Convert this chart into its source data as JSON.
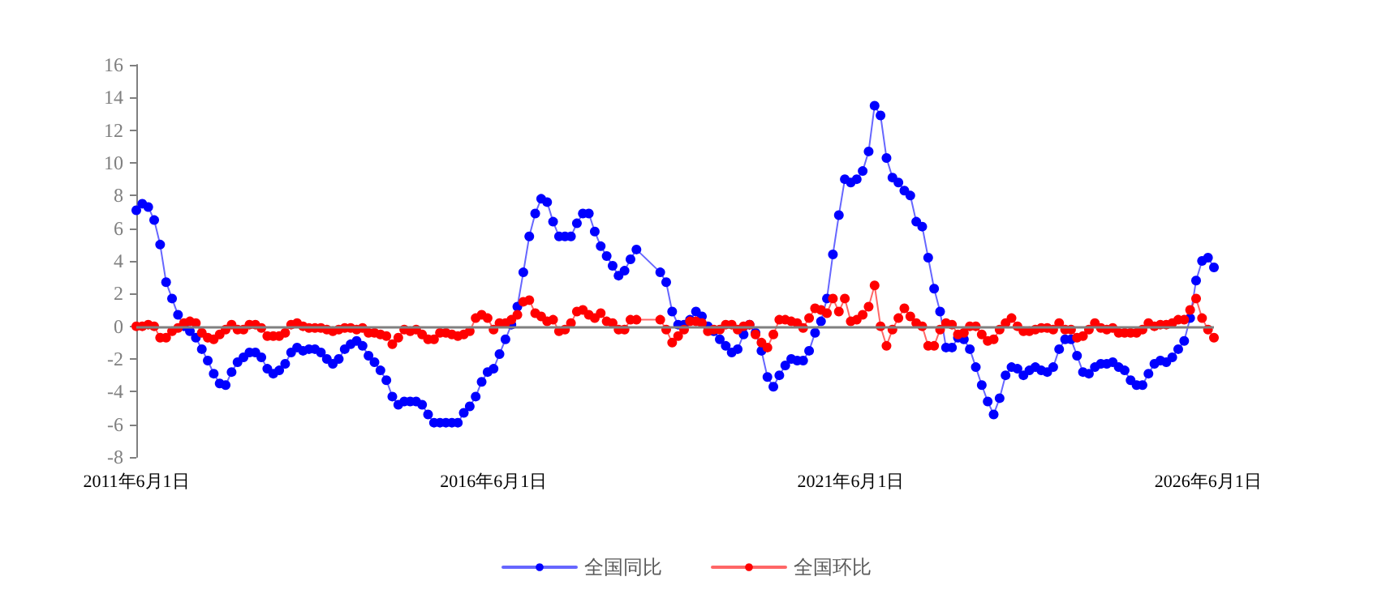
{
  "chart_data": {
    "type": "line",
    "categories": [
      "2011年6月1日",
      null,
      null,
      null,
      null,
      null,
      null,
      null,
      null,
      null,
      null,
      null,
      null,
      null,
      null,
      null,
      null,
      null,
      null,
      null,
      null,
      null,
      null,
      null,
      null,
      null,
      null,
      null,
      null,
      null,
      null,
      null,
      null,
      null,
      null,
      null,
      null,
      null,
      null,
      null,
      null,
      null,
      null,
      null,
      null,
      null,
      null,
      null,
      null,
      null,
      null,
      null,
      null,
      null,
      null,
      null,
      null,
      null,
      null,
      null,
      "2016年6月1日",
      null,
      null,
      null,
      null,
      null,
      null,
      null,
      null,
      null,
      null,
      null,
      null,
      null,
      null,
      null,
      null,
      null,
      null,
      null,
      null,
      null,
      null,
      null,
      null,
      null,
      null,
      null,
      null,
      null,
      null,
      null,
      null,
      null,
      null,
      null,
      null,
      null,
      null,
      null,
      null,
      null,
      null,
      null,
      null,
      null,
      null,
      null,
      null,
      null,
      null,
      null,
      null,
      null,
      null,
      null,
      null,
      null,
      null,
      null,
      "2021年6月1日",
      null,
      null,
      null,
      null,
      null,
      null,
      null,
      null,
      null,
      null,
      null,
      null,
      null,
      null,
      null,
      null,
      null,
      null,
      null,
      null,
      null,
      null,
      null,
      null,
      null,
      null,
      null,
      null,
      null,
      null,
      null,
      null,
      null,
      null,
      null,
      null,
      null,
      null,
      null,
      null,
      null,
      null,
      null,
      null,
      null,
      null,
      null,
      null,
      null,
      null,
      null,
      null,
      null,
      null,
      null,
      null,
      null,
      null,
      null,
      "2026年6月1日",
      null
    ],
    "series": [
      {
        "name": "全国同比",
        "color": "#0000ff",
        "values": [
          7.1,
          7.5,
          7.3,
          6.5,
          5.0,
          2.7,
          1.7,
          0.7,
          0.0,
          -0.3,
          -0.7,
          -1.4,
          -2.1,
          -2.9,
          -3.5,
          -3.6,
          -2.8,
          -2.2,
          -1.9,
          -1.6,
          -1.6,
          -1.9,
          -2.6,
          -2.9,
          -2.7,
          -2.3,
          -1.6,
          -1.3,
          -1.5,
          -1.4,
          -1.4,
          -1.6,
          -2.0,
          -2.3,
          -2.0,
          -1.4,
          -1.1,
          -0.9,
          -1.2,
          -1.8,
          -2.2,
          -2.7,
          -3.3,
          -4.3,
          -4.8,
          -4.6,
          -4.6,
          -4.6,
          -4.8,
          -5.4,
          -5.9,
          -5.9,
          -5.9,
          -5.9,
          -5.9,
          -5.3,
          -4.9,
          -4.3,
          -3.4,
          -2.8,
          -2.6,
          -1.7,
          -0.8,
          0.1,
          1.2,
          3.3,
          5.5,
          6.9,
          7.8,
          7.6,
          6.4,
          5.5,
          5.5,
          5.5,
          6.3,
          6.9,
          6.9,
          5.8,
          4.9,
          4.3,
          3.7,
          3.1,
          3.4,
          4.1,
          4.7,
          null,
          null,
          null,
          3.3,
          2.7,
          0.9,
          0.1,
          0.1,
          0.4,
          0.9,
          0.6,
          0.0,
          -0.3,
          -0.8,
          -1.2,
          -1.6,
          -1.4,
          -0.5,
          0.1,
          -0.4,
          -1.5,
          -3.1,
          -3.7,
          -3.0,
          -2.4,
          -2.0,
          -2.1,
          -2.1,
          -1.5,
          -0.4,
          0.3,
          1.7,
          4.4,
          6.8,
          9.0,
          8.8,
          9.0,
          9.5,
          10.7,
          13.5,
          12.9,
          10.3,
          9.1,
          8.8,
          8.3,
          8.0,
          6.4,
          6.1,
          4.2,
          2.3,
          0.9,
          -1.3,
          -1.3,
          -0.7,
          -0.8,
          -1.4,
          -2.5,
          -3.6,
          -4.6,
          -5.4,
          -4.4,
          -3.0,
          -2.5,
          -2.6,
          -3.0,
          -2.7,
          -2.5,
          -2.7,
          -2.8,
          -2.5,
          -1.4,
          -0.8,
          -0.8,
          -1.8,
          -2.8,
          -2.9,
          -2.5,
          -2.3,
          -2.3,
          -2.2,
          -2.5,
          -2.7,
          -3.3,
          -3.6,
          -3.6,
          -2.9,
          -2.3,
          -2.1,
          -2.2,
          -1.9,
          -1.4,
          -0.9,
          0.5,
          2.8,
          4.0,
          4.2,
          3.6
        ]
      },
      {
        "name": "全国环比",
        "color": "#ff0000",
        "values": [
          0.0,
          0.0,
          0.1,
          0.0,
          -0.7,
          -0.7,
          -0.3,
          -0.1,
          0.2,
          0.3,
          0.2,
          -0.4,
          -0.7,
          -0.8,
          -0.5,
          -0.2,
          0.1,
          -0.2,
          -0.2,
          0.1,
          0.1,
          -0.1,
          -0.6,
          -0.6,
          -0.6,
          -0.4,
          0.1,
          0.2,
          0.0,
          -0.1,
          -0.1,
          -0.1,
          -0.2,
          -0.3,
          -0.2,
          -0.1,
          -0.1,
          -0.2,
          -0.1,
          -0.4,
          -0.4,
          -0.5,
          -0.6,
          -1.1,
          -0.7,
          -0.2,
          -0.3,
          -0.2,
          -0.5,
          -0.8,
          -0.8,
          -0.4,
          -0.4,
          -0.5,
          -0.6,
          -0.5,
          -0.3,
          0.5,
          0.7,
          0.5,
          -0.2,
          0.2,
          0.2,
          0.4,
          0.7,
          1.5,
          1.6,
          0.8,
          0.6,
          0.3,
          0.4,
          -0.3,
          -0.2,
          0.2,
          0.9,
          1.0,
          0.7,
          0.5,
          0.8,
          0.3,
          0.2,
          -0.2,
          -0.2,
          0.4,
          0.4,
          null,
          null,
          null,
          0.4,
          -0.2,
          -1.0,
          -0.6,
          -0.2,
          0.3,
          0.3,
          0.2,
          -0.3,
          -0.2,
          -0.2,
          0.1,
          0.1,
          -0.2,
          0.0,
          0.1,
          -0.5,
          -1.0,
          -1.3,
          -0.5,
          0.4,
          0.4,
          0.3,
          0.2,
          -0.1,
          0.5,
          1.1,
          1.0,
          0.8,
          1.7,
          0.9,
          1.7,
          0.3,
          0.4,
          0.7,
          1.2,
          2.5,
          0.0,
          -1.2,
          -0.2,
          0.5,
          1.1,
          0.6,
          0.2,
          0.0,
          -1.2,
          -1.2,
          -0.2,
          0.2,
          0.1,
          -0.5,
          -0.4,
          0.0,
          0.0,
          -0.5,
          -0.9,
          -0.8,
          -0.2,
          0.2,
          0.5,
          0.0,
          -0.3,
          -0.3,
          -0.2,
          -0.1,
          -0.1,
          -0.2,
          0.2,
          -0.2,
          -0.2,
          -0.7,
          -0.6,
          -0.2,
          0.2,
          -0.1,
          -0.2,
          -0.1,
          -0.4,
          -0.4,
          -0.4,
          -0.4,
          -0.2,
          0.2,
          0.0,
          0.1,
          0.1,
          0.2,
          0.4,
          0.4,
          1.0,
          1.7,
          0.5,
          -0.2,
          -0.7
        ]
      }
    ],
    "ylim": [
      -8,
      16
    ],
    "yticks": [
      -8,
      -6,
      -4,
      -2,
      0,
      2,
      4,
      6,
      8,
      10,
      12,
      14,
      16
    ],
    "ref_lines": [
      {
        "axis": "y",
        "value": 0,
        "color": "#808080"
      }
    ],
    "grid": false,
    "legend": "bottom",
    "marker": "circle",
    "line_style": "solid"
  }
}
